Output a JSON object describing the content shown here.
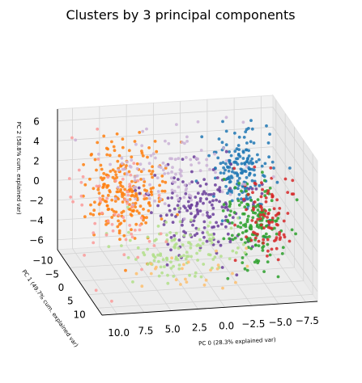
{
  "chart_data": {
    "type": "scatter",
    "title": "Clusters by 3 principal components",
    "xlabel": "PC 0 (28.3% explained var)",
    "ylabel": "PC 1 (49.7% cum. explained var)",
    "zlabel": "PC 2 (58.8% cum. explained var)",
    "x_ticks": [
      10.0,
      7.5,
      5.0,
      2.5,
      0.0,
      -2.5,
      -5.0,
      -7.5
    ],
    "x_tick_labels": [
      "10.0",
      "7.5",
      "5.0",
      "2.5",
      "0.0",
      "−2.5",
      "−5.0",
      "−7.5"
    ],
    "y_ticks": [
      -10,
      -5,
      0,
      5,
      10
    ],
    "y_tick_labels": [
      "−10",
      "−5",
      "0",
      "5",
      "10"
    ],
    "z_ticks": [
      6,
      4,
      2,
      0,
      -2,
      -4,
      -6
    ],
    "z_tick_labels": [
      "6",
      "4",
      "2",
      "0",
      "−2",
      "−4",
      "−6"
    ],
    "xlim": [
      -8.6,
      11.4
    ],
    "ylim": [
      -11.7,
      12.6
    ],
    "zlim": [
      -7.0,
      7.2
    ],
    "grid": true,
    "series": [
      {
        "color": "#ff7f0e",
        "center": [
          6.7,
          -3.0,
          1.0
        ],
        "spread": [
          1.8,
          3.0,
          2.2
        ],
        "count": 230
      },
      {
        "color": "#1f77b4",
        "center": [
          -4.3,
          -2.0,
          2.5
        ],
        "spread": [
          1.3,
          3.0,
          2.0
        ],
        "count": 170
      },
      {
        "color": "#6a3d9a",
        "center": [
          0.0,
          0.0,
          -1.0
        ],
        "spread": [
          2.5,
          3.0,
          2.2
        ],
        "count": 170
      },
      {
        "color": "#2ca02c",
        "center": [
          -4.5,
          2.0,
          -2.0
        ],
        "spread": [
          1.3,
          3.0,
          1.8
        ],
        "count": 150
      },
      {
        "color": "#d62728",
        "center": [
          -6.0,
          1.0,
          -1.0
        ],
        "spread": [
          1.0,
          3.0,
          2.2
        ],
        "count": 90
      },
      {
        "color": "#b2df8a",
        "center": [
          3.0,
          4.0,
          -3.5
        ],
        "spread": [
          2.5,
          2.5,
          1.5
        ],
        "count": 120
      },
      {
        "color": "#cab2d6",
        "center": [
          2.5,
          -3.0,
          2.5
        ],
        "spread": [
          3.0,
          3.0,
          2.0
        ],
        "count": 110
      },
      {
        "color": "#fb9a99",
        "center": [
          8.0,
          0.0,
          -0.5
        ],
        "spread": [
          2.0,
          5.0,
          3.0
        ],
        "count": 60
      },
      {
        "color": "#fdbf6f",
        "center": [
          2.0,
          6.0,
          -5.0
        ],
        "spread": [
          3.5,
          2.0,
          1.0
        ],
        "count": 25
      }
    ]
  }
}
